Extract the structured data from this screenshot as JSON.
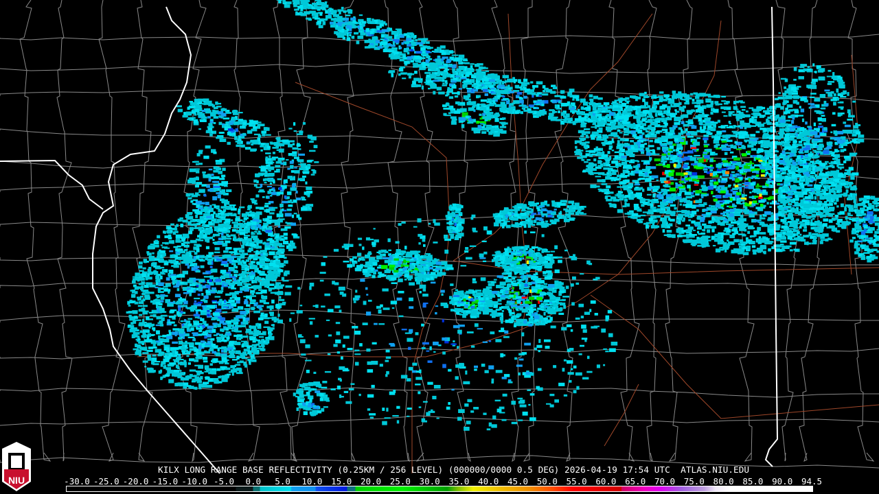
{
  "title": "KILX LONG RANGE BASE REFLECTIVITY (0.25KM / 256 LEVEL) (000000/0000 0.5 DEG) 2026-04-19 17:54 UTC  ATLAS.NIU.EDU",
  "logo": {
    "text": "NIU"
  },
  "colorbar": {
    "labels": [
      "-30.0",
      "-25.0",
      "-20.0",
      "-15.0",
      "-10.0",
      "-5.0",
      "0.0",
      "5.0",
      "10.0",
      "15.0",
      "20.0",
      "25.0",
      "30.0",
      "35.0",
      "40.0",
      "45.0",
      "50.0",
      "55.0",
      "60.0",
      "65.0",
      "70.0",
      "75.0",
      "80.0",
      "85.0",
      "90.0",
      "94.5"
    ]
  },
  "colors": {
    "background": "#000000",
    "county_lines": "#8a8a8a",
    "state_lines": "#ffffff",
    "highways": "#a0482a",
    "echo_palette": [
      "#00c8d8",
      "#00e0f0",
      "#10a0f0",
      "#1070f0",
      "#0030e0",
      "#00d000",
      "#00f000",
      "#f0f000",
      "#ff8000",
      "#ff0000"
    ]
  }
}
